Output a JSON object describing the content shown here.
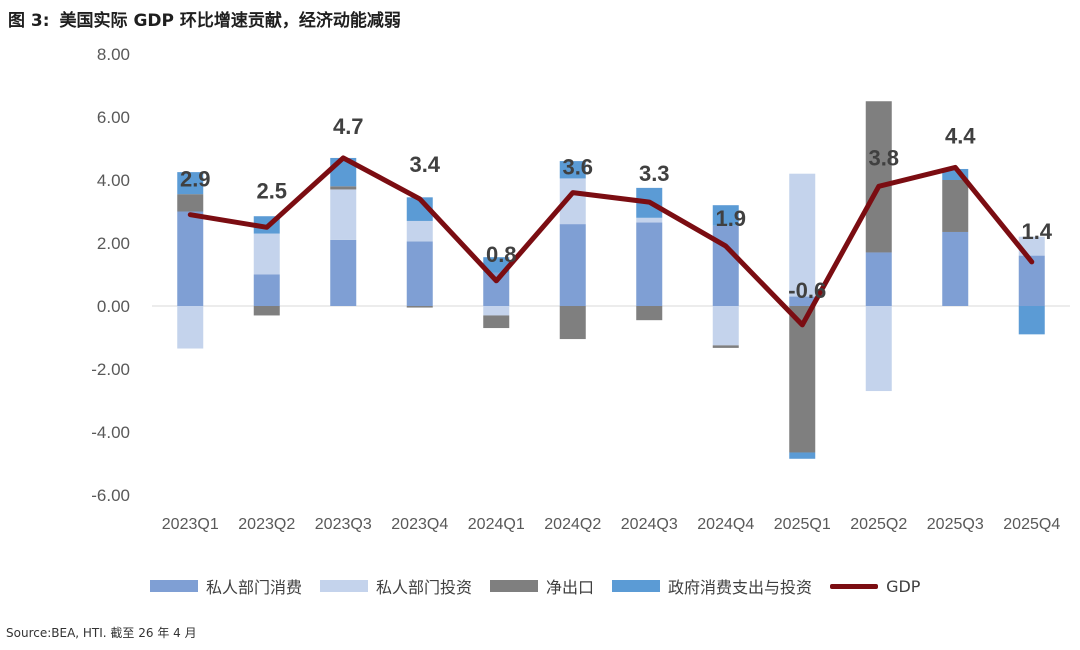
{
  "figure": {
    "label": "图 3:",
    "title": "美国实际 GDP 环比增速贡献，经济动能减弱",
    "source": "Source:BEA, HTI. 截至 26 年 4 月"
  },
  "chart_data": {
    "type": "stacked-bar-line",
    "title": "美国实际 GDP 环比增速贡献，经济动能减弱",
    "categories": [
      "2023Q1",
      "2023Q2",
      "2023Q3",
      "2023Q4",
      "2024Q1",
      "2024Q2",
      "2024Q3",
      "2024Q4",
      "2025Q1",
      "2025Q2",
      "2025Q3",
      "2025Q4"
    ],
    "ylim": [
      -6,
      8
    ],
    "yticks": [
      8,
      6,
      4,
      2,
      0,
      -2,
      -4,
      -6
    ],
    "ytick_labels": [
      "8.00",
      "6.00",
      "4.00",
      "2.00",
      "0.00",
      "-2.00",
      "-4.00",
      "-6.00"
    ],
    "series": [
      {
        "name": "私人部门消费",
        "kind": "bar",
        "color": "#7f9fd4",
        "values": [
          3.0,
          1.0,
          2.1,
          2.05,
          1.05,
          2.6,
          2.65,
          2.55,
          0.3,
          1.7,
          2.35,
          1.6
        ]
      },
      {
        "name": "私人部门投资",
        "kind": "bar",
        "color": "#c4d3ec",
        "values": [
          -1.35,
          1.3,
          1.6,
          0.65,
          -0.3,
          1.45,
          0.15,
          -1.25,
          3.9,
          -2.7,
          0.0,
          0.6
        ]
      },
      {
        "name": "净出口",
        "kind": "bar",
        "color": "#7f7f7f",
        "values": [
          0.55,
          -0.3,
          0.1,
          -0.05,
          -0.4,
          -1.05,
          -0.45,
          -0.08,
          -4.65,
          4.8,
          1.65,
          0.0
        ]
      },
      {
        "name": "政府消费支出与投资",
        "kind": "bar",
        "color": "#5b9bd5",
        "values": [
          0.7,
          0.55,
          0.9,
          0.75,
          0.5,
          0.55,
          0.95,
          0.65,
          -0.2,
          0.0,
          0.35,
          -0.9
        ]
      },
      {
        "name": "GDP",
        "kind": "line",
        "color": "#7b0d12",
        "values": [
          2.9,
          2.5,
          4.7,
          3.4,
          0.8,
          3.6,
          3.3,
          1.9,
          -0.6,
          3.8,
          4.4,
          1.4
        ]
      }
    ],
    "data_labels": [
      "2.9",
      "2.5",
      "4.7",
      "3.4",
      "0.8",
      "3.6",
      "3.3",
      "1.9",
      "-0.6",
      "3.8",
      "4.4",
      "1.4"
    ],
    "legend_position": "bottom"
  }
}
